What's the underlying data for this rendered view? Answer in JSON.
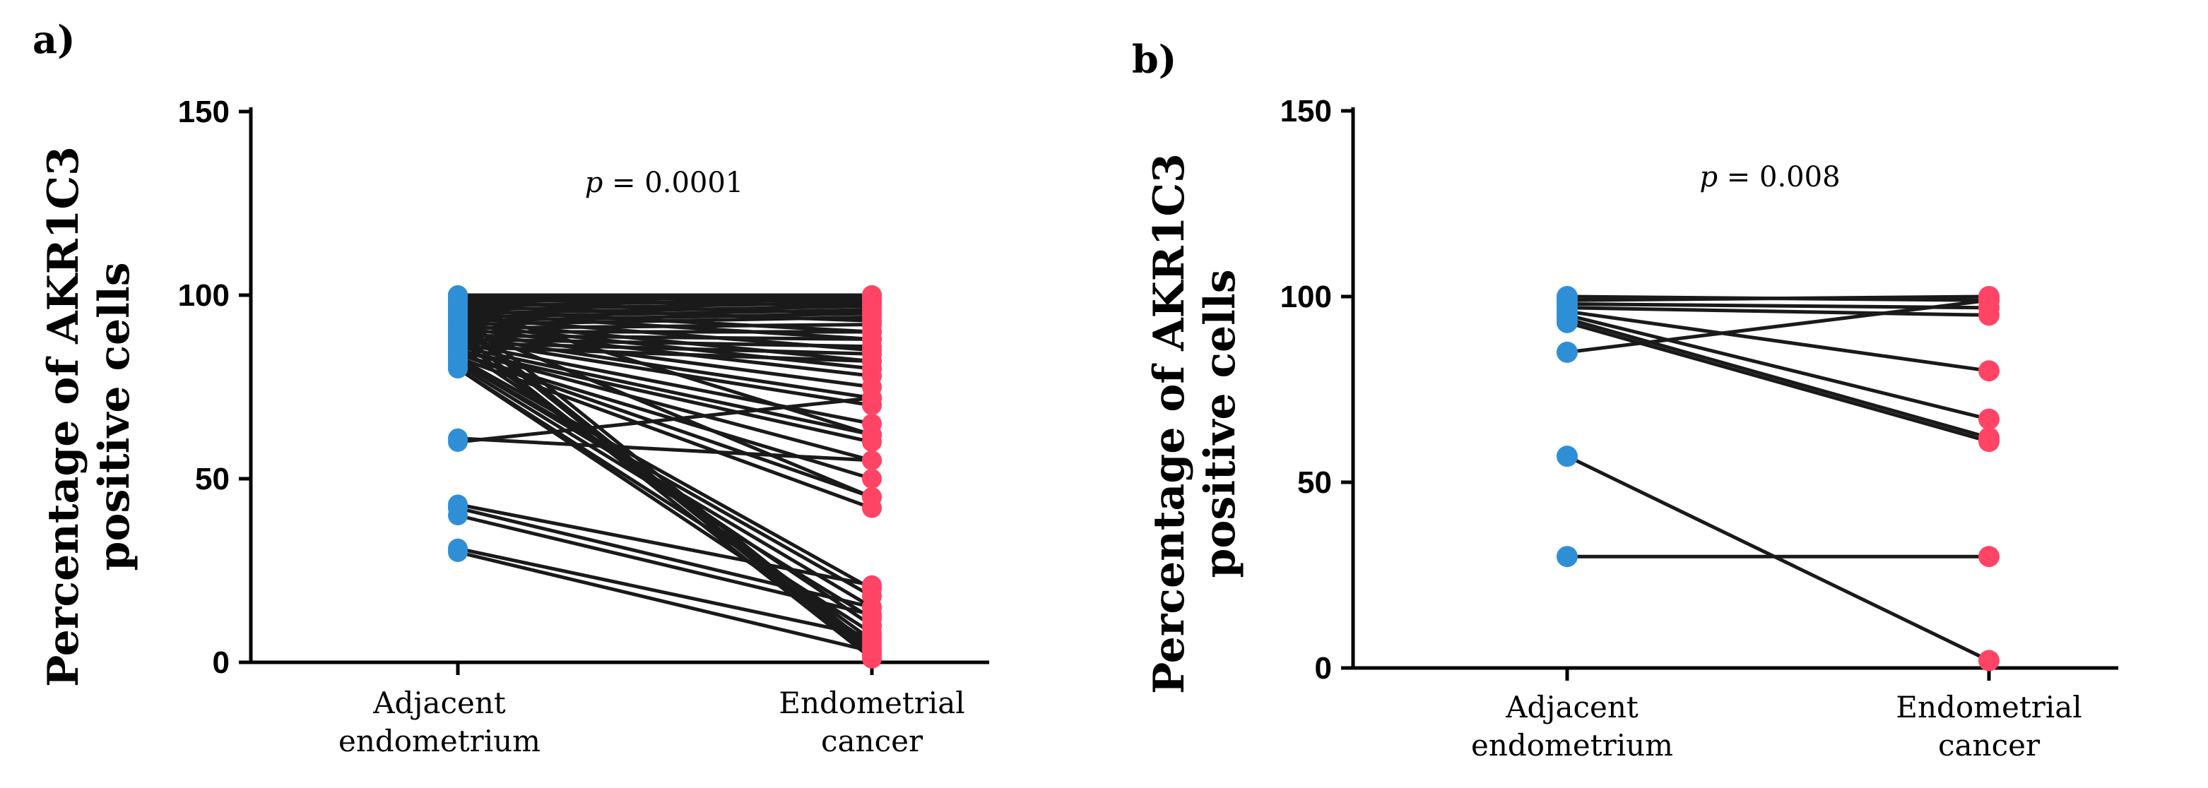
{
  "colors": {
    "adjacent": "#2f8fd6",
    "cancer": "#ff4466",
    "line": "#1a1a1a"
  },
  "chart_data": [
    {
      "type": "line",
      "panel": "a)",
      "ylabel_line1": "Percentage of AKR1C3",
      "ylabel_line2": "positive cells",
      "ylim": [
        0,
        150
      ],
      "yticks": [
        "0",
        "50",
        "100",
        "150"
      ],
      "categories": [
        {
          "line1": "Adjacent",
          "line2": "endometrium"
        },
        {
          "line1": "Endometrial",
          "line2": "cancer"
        }
      ],
      "p_prefix": "p",
      "p_value": " = 0.0001",
      "pairs": [
        [
          100,
          100
        ],
        [
          100,
          99
        ],
        [
          100,
          98
        ],
        [
          99,
          100
        ],
        [
          99,
          97
        ],
        [
          98,
          100
        ],
        [
          98,
          95
        ],
        [
          97,
          99
        ],
        [
          97,
          93
        ],
        [
          96,
          98
        ],
        [
          96,
          90
        ],
        [
          95,
          97
        ],
        [
          95,
          88
        ],
        [
          94,
          96
        ],
        [
          94,
          85
        ],
        [
          93,
          95
        ],
        [
          93,
          82
        ],
        [
          92,
          94
        ],
        [
          92,
          80
        ],
        [
          91,
          92
        ],
        [
          91,
          78
        ],
        [
          90,
          90
        ],
        [
          90,
          75
        ],
        [
          89,
          88
        ],
        [
          89,
          72
        ],
        [
          88,
          86
        ],
        [
          88,
          70
        ],
        [
          87,
          84
        ],
        [
          87,
          65
        ],
        [
          86,
          82
        ],
        [
          86,
          62
        ],
        [
          85,
          60
        ],
        [
          85,
          55
        ],
        [
          84,
          50
        ],
        [
          84,
          45
        ],
        [
          83,
          42
        ],
        [
          83,
          20
        ],
        [
          82,
          18
        ],
        [
          82,
          15
        ],
        [
          81,
          12
        ],
        [
          80,
          8
        ],
        [
          80,
          5
        ],
        [
          95,
          4
        ],
        [
          93,
          3
        ],
        [
          92,
          2
        ],
        [
          90,
          1
        ],
        [
          88,
          6
        ],
        [
          86,
          10
        ],
        [
          97,
          62
        ],
        [
          92,
          45
        ],
        [
          60,
          72
        ],
        [
          61,
          55
        ],
        [
          43,
          21
        ],
        [
          42,
          15
        ],
        [
          40,
          13
        ],
        [
          31,
          7
        ],
        [
          30,
          3
        ]
      ]
    },
    {
      "type": "line",
      "panel": "b)",
      "ylabel_line1": "Percentage of AKR1C3",
      "ylabel_line2": "positive cells",
      "ylim": [
        0,
        150
      ],
      "yticks": [
        "0",
        "50",
        "100",
        "150"
      ],
      "categories": [
        {
          "line1": "Adjacent",
          "line2": "endometrium"
        },
        {
          "line1": "Endometrial",
          "line2": "cancer"
        }
      ],
      "p_prefix": "p",
      "p_value": " = 0.008",
      "pairs": [
        [
          100,
          99
        ],
        [
          99,
          100
        ],
        [
          98,
          97
        ],
        [
          97,
          95
        ],
        [
          96,
          80
        ],
        [
          95,
          67
        ],
        [
          94,
          62
        ],
        [
          93,
          61
        ],
        [
          85,
          99
        ],
        [
          57,
          2
        ],
        [
          30,
          30
        ]
      ]
    }
  ]
}
